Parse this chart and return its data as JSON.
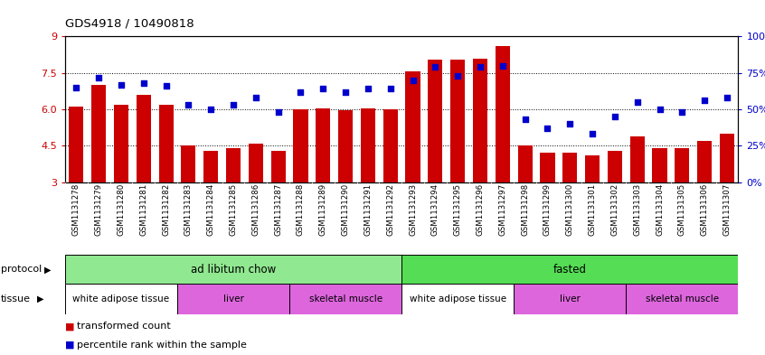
{
  "title": "GDS4918 / 10490818",
  "samples": [
    "GSM1131278",
    "GSM1131279",
    "GSM1131280",
    "GSM1131281",
    "GSM1131282",
    "GSM1131283",
    "GSM1131284",
    "GSM1131285",
    "GSM1131286",
    "GSM1131287",
    "GSM1131288",
    "GSM1131289",
    "GSM1131290",
    "GSM1131291",
    "GSM1131292",
    "GSM1131293",
    "GSM1131294",
    "GSM1131295",
    "GSM1131296",
    "GSM1131297",
    "GSM1131298",
    "GSM1131299",
    "GSM1131300",
    "GSM1131301",
    "GSM1131302",
    "GSM1131303",
    "GSM1131304",
    "GSM1131305",
    "GSM1131306",
    "GSM1131307"
  ],
  "bar_values": [
    6.1,
    7.0,
    6.2,
    6.6,
    6.2,
    4.5,
    4.3,
    4.4,
    4.6,
    4.3,
    6.0,
    6.05,
    5.95,
    6.05,
    6.0,
    7.55,
    8.05,
    8.05,
    8.1,
    8.6,
    4.5,
    4.2,
    4.2,
    4.1,
    4.3,
    4.9,
    4.4,
    4.4,
    4.7,
    5.0
  ],
  "dot_values": [
    65,
    72,
    67,
    68,
    66,
    53,
    50,
    53,
    58,
    48,
    62,
    64,
    62,
    64,
    64,
    70,
    79,
    73,
    79,
    80,
    43,
    37,
    40,
    33,
    45,
    55,
    50,
    48,
    56,
    58
  ],
  "ylim_left": [
    3,
    9
  ],
  "ylim_right": [
    0,
    100
  ],
  "yticks_left": [
    3,
    4.5,
    6.0,
    7.5,
    9
  ],
  "yticks_right": [
    0,
    25,
    50,
    75,
    100
  ],
  "bar_color": "#cc0000",
  "dot_color": "#0000cc",
  "background_color": "#ffffff",
  "xtick_bg_color": "#d8d8d8",
  "protocol_groups": [
    {
      "label": "ad libitum chow",
      "start": 0,
      "end": 14,
      "color": "#90e890"
    },
    {
      "label": "fasted",
      "start": 15,
      "end": 29,
      "color": "#55dd55"
    }
  ],
  "tissue_groups": [
    {
      "label": "white adipose tissue",
      "start": 0,
      "end": 4,
      "color": "#ffffff"
    },
    {
      "label": "liver",
      "start": 5,
      "end": 9,
      "color": "#dd66dd"
    },
    {
      "label": "skeletal muscle",
      "start": 10,
      "end": 14,
      "color": "#dd66dd"
    },
    {
      "label": "white adipose tissue",
      "start": 15,
      "end": 19,
      "color": "#ffffff"
    },
    {
      "label": "liver",
      "start": 20,
      "end": 24,
      "color": "#dd66dd"
    },
    {
      "label": "skeletal muscle",
      "start": 25,
      "end": 29,
      "color": "#dd66dd"
    }
  ]
}
